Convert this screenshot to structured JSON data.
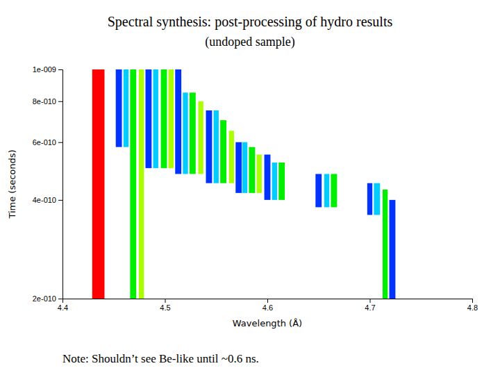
{
  "chart_data": {
    "type": "range_bar",
    "title": "Spectral synthesis: post-processing of hydro results",
    "subtitle": "(undoped sample)",
    "annotation": "Note: Shouldn’t see Be-like until ~0.6 ns.",
    "xlabel": "Wavelength (Å)",
    "ylabel": "Time (seconds)",
    "log": "y",
    "grid": false,
    "xlim": [
      4.4,
      4.8
    ],
    "ylim": [
      2e-10,
      1e-09
    ],
    "xticks": [
      4.4,
      4.5,
      4.6,
      4.7,
      4.8
    ],
    "yticks": [
      {
        "value": 1e-09,
        "label": "1e-009"
      },
      {
        "value": 8e-10,
        "label": "8e-010"
      },
      {
        "value": 6e-10,
        "label": "6e-010"
      },
      {
        "value": 4e-10,
        "label": "4e-010"
      },
      {
        "value": 2e-10,
        "label": "2e-010"
      }
    ],
    "x": [
      4.435,
      4.455,
      4.462,
      4.469,
      4.477,
      4.484,
      4.491,
      4.499,
      4.506,
      4.513,
      4.52,
      4.527,
      4.535,
      4.543,
      4.55,
      4.557,
      4.565,
      4.572,
      4.578,
      4.585,
      4.592,
      4.6,
      4.607,
      4.614,
      4.65,
      4.658,
      4.665,
      4.7,
      4.707,
      4.715,
      4.722
    ],
    "half_widths": [
      0.006,
      0.003,
      0.0025,
      0.003,
      0.0025,
      0.003,
      0.0025,
      0.003,
      0.0025,
      0.003,
      0.0025,
      0.003,
      0.0025,
      0.003,
      0.0025,
      0.003,
      0.0025,
      0.003,
      0.0025,
      0.003,
      0.0025,
      0.003,
      0.0025,
      0.003,
      0.003,
      0.0025,
      0.003,
      0.0025,
      0.003,
      0.0025,
      0.003
    ],
    "starts": [
      2e-10,
      5.8e-10,
      5.8e-10,
      2e-10,
      2e-10,
      5e-10,
      5e-10,
      5e-10,
      5e-10,
      4.8e-10,
      4.8e-10,
      4.8e-10,
      4.8e-10,
      4.5e-10,
      4.5e-10,
      4.5e-10,
      4.5e-10,
      4.2e-10,
      4.2e-10,
      4.2e-10,
      4.2e-10,
      4e-10,
      4e-10,
      4e-10,
      3.8e-10,
      3.8e-10,
      3.8e-10,
      3.6e-10,
      3.6e-10,
      2e-10,
      2e-10
    ],
    "ends": [
      1e-09,
      1e-09,
      1e-09,
      1e-09,
      1e-09,
      1e-09,
      1e-09,
      1e-09,
      1e-09,
      1e-09,
      8.5e-10,
      8.5e-10,
      8e-10,
      7.5e-10,
      7.5e-10,
      7e-10,
      6.5e-10,
      6e-10,
      6e-10,
      5.8e-10,
      5.5e-10,
      5.5e-10,
      5.2e-10,
      5.2e-10,
      4.8e-10,
      4.8e-10,
      4.8e-10,
      4.5e-10,
      4.5e-10,
      4.3e-10,
      4e-10
    ],
    "colors": [
      "#ff0000",
      "#0033ff",
      "#00ccff",
      "#00ee00",
      "#aaff00",
      "#0033ff",
      "#00ccff",
      "#00ee00",
      "#aaff00",
      "#0033ff",
      "#00ccff",
      "#00ee00",
      "#aaff00",
      "#0033ff",
      "#00ccff",
      "#00ee00",
      "#aaff00",
      "#0033ff",
      "#00ccff",
      "#00ee00",
      "#aaff00",
      "#0033ff",
      "#00ccff",
      "#00ee00",
      "#0033ff",
      "#00ccff",
      "#00ee00",
      "#0033ff",
      "#00ccff",
      "#00ee00",
      "#0033ff"
    ]
  }
}
